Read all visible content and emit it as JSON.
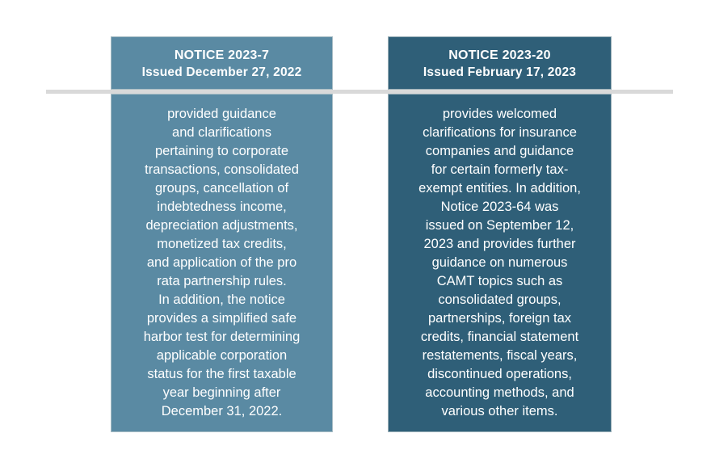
{
  "page": {
    "background_color": "#ffffff"
  },
  "divider": {
    "color": "#d9d9d9"
  },
  "cards": [
    {
      "id": "notice-2023-7",
      "color": "#5a8aa3",
      "text_color": "#ffffff",
      "title": "NOTICE 2023-7",
      "subtitle": "Issued December 27, 2022",
      "body": "provided guidance\nand clarifications\npertaining to corporate\ntransactions, consolidated\ngroups, cancellation of\nindebtedness income,\ndepreciation adjustments,\nmonetized tax credits,\nand application of the pro\nrata partnership rules.\nIn addition, the notice\nprovides a simplified safe\nharbor test for determining\napplicable corporation\nstatus for the first taxable\nyear beginning after\nDecember 31, 2022."
    },
    {
      "id": "notice-2023-20",
      "color": "#2f5f78",
      "text_color": "#ffffff",
      "title": "NOTICE 2023-20",
      "subtitle": "Issued February 17, 2023",
      "body": "provides welcomed\nclarifications for insurance\ncompanies and guidance\nfor certain formerly tax-\nexempt entities. In addition,\nNotice 2023-64 was\nissued on September 12,\n2023 and provides further\nguidance on numerous\nCAMT topics such as\nconsolidated groups,\npartnerships, foreign tax\ncredits, financial statement\nrestatements, fiscal years,\ndiscontinued operations,\naccounting methods, and\nvarious other items."
    }
  ]
}
